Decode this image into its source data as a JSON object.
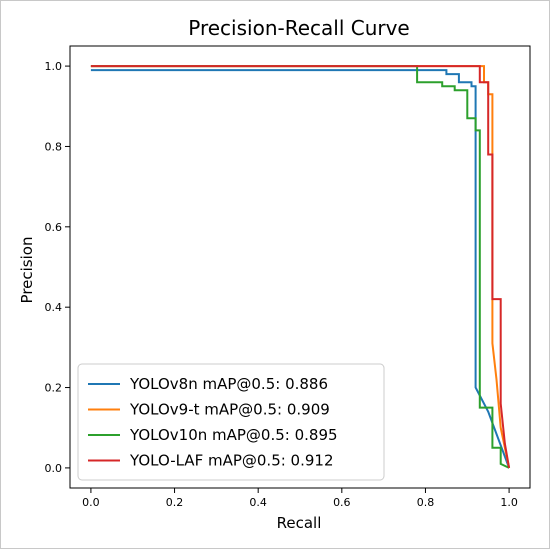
{
  "chart_data": {
    "type": "line",
    "title": "Precision-Recall Curve",
    "xlabel": "Recall",
    "ylabel": "Precision",
    "xlim": [
      -0.05,
      1.05
    ],
    "ylim": [
      -0.05,
      1.05
    ],
    "xticks": [
      "0.0",
      "0.2",
      "0.4",
      "0.6",
      "0.8",
      "1.0"
    ],
    "yticks": [
      "0.0",
      "0.2",
      "0.4",
      "0.6",
      "0.8",
      "1.0"
    ],
    "grid": false,
    "legend_position": "lower-left",
    "series": [
      {
        "name": "YOLOv8n mAP@0.5: 0.886",
        "color": "#1f77b4",
        "points": [
          [
            0,
            0.99
          ],
          [
            0.85,
            0.99
          ],
          [
            0.85,
            0.98
          ],
          [
            0.88,
            0.98
          ],
          [
            0.88,
            0.96
          ],
          [
            0.91,
            0.96
          ],
          [
            0.91,
            0.95
          ],
          [
            0.92,
            0.95
          ],
          [
            0.92,
            0.2
          ],
          [
            0.95,
            0.14
          ],
          [
            1.0,
            0.0
          ]
        ]
      },
      {
        "name": "YOLOv9-t mAP@0.5: 0.909",
        "color": "#ff7f0e",
        "points": [
          [
            0,
            1.0
          ],
          [
            0.94,
            1.0
          ],
          [
            0.94,
            0.96
          ],
          [
            0.95,
            0.96
          ],
          [
            0.95,
            0.93
          ],
          [
            0.96,
            0.93
          ],
          [
            0.96,
            0.31
          ],
          [
            0.97,
            0.22
          ],
          [
            0.98,
            0.1
          ],
          [
            0.99,
            0.05
          ],
          [
            1.0,
            0.0
          ]
        ]
      },
      {
        "name": "YOLOv10n mAP@0.5: 0.895",
        "color": "#2ca02c",
        "points": [
          [
            0,
            1.0
          ],
          [
            0.78,
            1.0
          ],
          [
            0.78,
            0.96
          ],
          [
            0.84,
            0.96
          ],
          [
            0.84,
            0.95
          ],
          [
            0.87,
            0.95
          ],
          [
            0.87,
            0.94
          ],
          [
            0.9,
            0.94
          ],
          [
            0.9,
            0.87
          ],
          [
            0.92,
            0.87
          ],
          [
            0.92,
            0.84
          ],
          [
            0.93,
            0.84
          ],
          [
            0.93,
            0.15
          ],
          [
            0.96,
            0.15
          ],
          [
            0.96,
            0.05
          ],
          [
            0.98,
            0.05
          ],
          [
            0.98,
            0.01
          ],
          [
            1.0,
            0.0
          ]
        ]
      },
      {
        "name": "YOLO-LAF mAP@0.5: 0.912",
        "color": "#d62728",
        "points": [
          [
            0,
            1.0
          ],
          [
            0.93,
            1.0
          ],
          [
            0.93,
            0.96
          ],
          [
            0.95,
            0.96
          ],
          [
            0.95,
            0.78
          ],
          [
            0.96,
            0.78
          ],
          [
            0.96,
            0.42
          ],
          [
            0.98,
            0.42
          ],
          [
            0.98,
            0.16
          ],
          [
            0.99,
            0.06
          ],
          [
            1.0,
            0.0
          ]
        ]
      }
    ]
  }
}
